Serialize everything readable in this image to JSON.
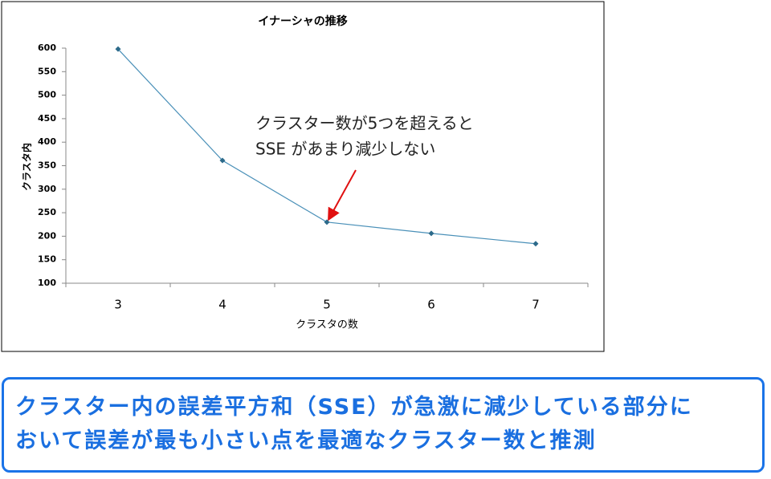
{
  "chart_data": {
    "type": "line",
    "title": "イナーシャの推移",
    "x_label": "クラスタの数",
    "y_label": "クラスタ内",
    "categories": [
      3,
      4,
      5,
      6,
      7
    ],
    "values": [
      598,
      361,
      230,
      206,
      184
    ],
    "color": "#4a90b8",
    "ylim": [
      100,
      600
    ],
    "yticks": [
      100,
      150,
      200,
      250,
      300,
      350,
      400,
      450,
      500,
      550,
      600
    ],
    "grid": false,
    "annotation": [
      "クラスター数が5つを超えると",
      "SSE があまり減少しない"
    ]
  },
  "caption": [
    "クラスター内の誤差平方和（SSE）が急激に減少している部分に",
    "おいて誤差が最も小さい点を最適なクラスター数と推測"
  ]
}
